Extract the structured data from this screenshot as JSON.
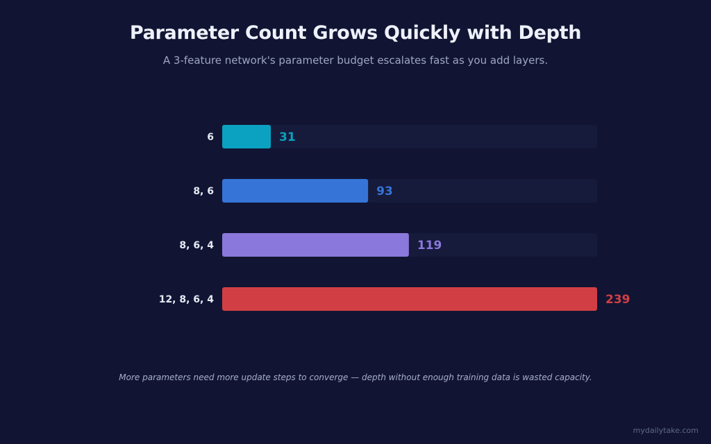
{
  "header": {
    "title": "Parameter Count Grows Quickly with Depth",
    "subtitle": "A 3-feature network's parameter budget escalates fast as you add layers."
  },
  "chart_data": {
    "type": "bar",
    "orientation": "horizontal",
    "categories": [
      "6",
      "8, 6",
      "8, 6, 4",
      "12, 8, 6, 4"
    ],
    "values": [
      31,
      93,
      119,
      239
    ],
    "colors": [
      "#0aa2c0",
      "#3674d8",
      "#8b78dc",
      "#d13f45"
    ],
    "track_color": "#161a3b",
    "xlim": [
      0,
      239
    ],
    "grid": false,
    "legend": "none"
  },
  "footer": {
    "note": "More parameters need more update steps to converge — depth without enough training data is wasted capacity.",
    "watermark": "mydailytake.com"
  }
}
